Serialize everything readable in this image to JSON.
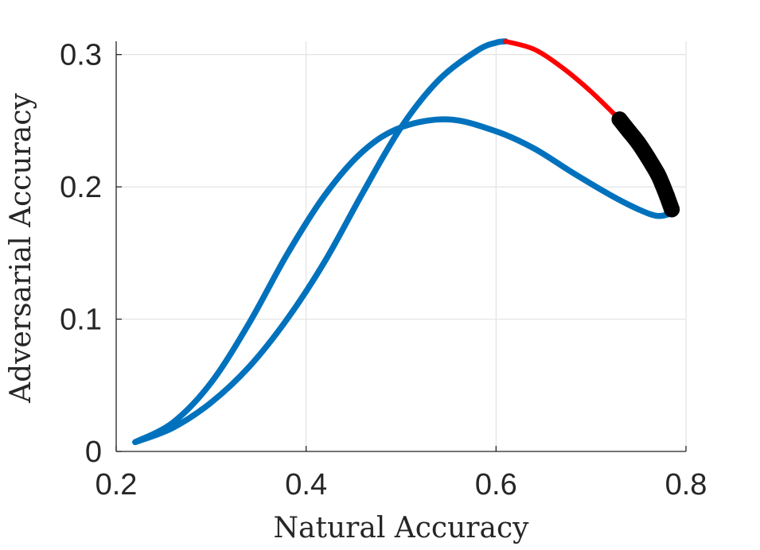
{
  "chart_data": {
    "type": "line",
    "title": "",
    "xlabel": "Natural Accuracy",
    "ylabel": "Adversarial Accuracy",
    "xlim": [
      0.2,
      0.8
    ],
    "ylim": [
      0,
      0.31
    ],
    "xticks": [
      0.2,
      0.4,
      0.6,
      0.8
    ],
    "xtick_labels": [
      "0.2",
      "0.4",
      "0.6",
      "0.8"
    ],
    "yticks": [
      0,
      0.1,
      0.2,
      0.3
    ],
    "ytick_labels": [
      "0",
      "0.1",
      "0.2",
      "0.3"
    ],
    "grid": true,
    "legend": "none",
    "series": [
      {
        "color": "#0072BD",
        "style": "thick-line",
        "x": [
          0.22,
          0.26,
          0.3,
          0.34,
          0.38,
          0.42,
          0.46,
          0.5,
          0.54,
          0.58,
          0.6,
          0.61
        ],
        "y": [
          0.007,
          0.018,
          0.037,
          0.064,
          0.1,
          0.144,
          0.196,
          0.245,
          0.281,
          0.303,
          0.309,
          0.31
        ]
      },
      {
        "color": "#0072BD",
        "style": "thick-line",
        "x": [
          0.22,
          0.26,
          0.3,
          0.34,
          0.38,
          0.42,
          0.46,
          0.5,
          0.55,
          0.6,
          0.64,
          0.68,
          0.72,
          0.75,
          0.77,
          0.785
        ],
        "y": [
          0.007,
          0.022,
          0.052,
          0.097,
          0.149,
          0.194,
          0.227,
          0.245,
          0.251,
          0.242,
          0.229,
          0.211,
          0.194,
          0.183,
          0.178,
          0.18
        ]
      },
      {
        "color": "#FF0000",
        "style": "thin-line",
        "x": [
          0.61,
          0.64,
          0.67,
          0.7,
          0.73
        ],
        "y": [
          0.31,
          0.304,
          0.29,
          0.272,
          0.251
        ]
      },
      {
        "color": "#000000",
        "style": "markers",
        "x": [
          0.73,
          0.74,
          0.75,
          0.76,
          0.77,
          0.775,
          0.78,
          0.785
        ],
        "y": [
          0.251,
          0.242,
          0.233,
          0.222,
          0.21,
          0.202,
          0.193,
          0.183
        ]
      }
    ]
  }
}
